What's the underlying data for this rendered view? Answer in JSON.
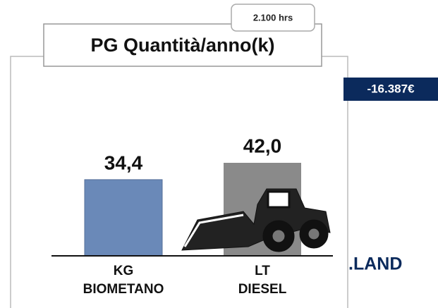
{
  "chart_data": {
    "type": "bar",
    "title": "PG Quantità/anno(k)",
    "badge": "2.100 hrs",
    "saving": "-16.387€",
    "brand": ".LAND",
    "categories": [
      "KG BIOMETANO",
      "LT DIESEL"
    ],
    "values": [
      34.4,
      42.0
    ],
    "value_labels": [
      "34,4",
      "42,0"
    ],
    "colors": [
      "#6a89b8",
      "#8a8a8a"
    ]
  }
}
